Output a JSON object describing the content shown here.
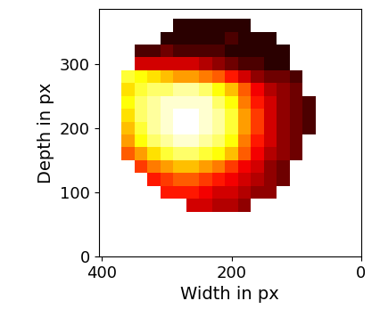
{
  "chart_data": {
    "type": "heatmap",
    "x_label": "Width in px",
    "y_label": "Depth in px",
    "xlim": [
      405,
      0
    ],
    "ylim": [
      0,
      385
    ],
    "xticks": [
      400,
      200,
      0
    ],
    "yticks": [
      0,
      100,
      200,
      300
    ],
    "color": "hot",
    "cell_range": [
      0,
      1
    ],
    "x_edges": [
      70,
      90,
      110,
      130,
      150,
      170,
      190,
      210,
      230,
      250,
      270,
      290,
      310,
      330,
      350,
      370,
      390
    ],
    "y_edges": [
      70,
      90,
      110,
      130,
      150,
      170,
      190,
      210,
      230,
      250,
      270,
      290,
      310,
      330,
      350,
      370
    ],
    "cells": [
      [
        null,
        null,
        null,
        null,
        null,
        0.2,
        0.25,
        0.25,
        0.3,
        0.3,
        null,
        null,
        null,
        null,
        null,
        null
      ],
      [
        null,
        null,
        null,
        0.2,
        0.2,
        0.25,
        0.3,
        0.3,
        0.35,
        0.4,
        0.4,
        0.4,
        null,
        null,
        null,
        null
      ],
      [
        null,
        null,
        0.15,
        0.2,
        0.25,
        0.3,
        0.35,
        0.4,
        0.45,
        0.5,
        0.5,
        0.45,
        0.4,
        null,
        null,
        null
      ],
      [
        null,
        null,
        0.15,
        0.2,
        0.3,
        0.35,
        0.45,
        0.55,
        0.6,
        0.65,
        0.65,
        0.6,
        0.55,
        0.45,
        null,
        null
      ],
      [
        null,
        0.15,
        0.2,
        0.25,
        0.35,
        0.5,
        0.65,
        0.75,
        0.8,
        0.85,
        0.85,
        0.8,
        0.7,
        0.6,
        0.5,
        null
      ],
      [
        null,
        0.15,
        0.2,
        0.3,
        0.4,
        0.55,
        0.75,
        0.85,
        0.9,
        0.95,
        0.95,
        0.9,
        0.85,
        0.75,
        0.6,
        null
      ],
      [
        0.1,
        0.15,
        0.2,
        0.3,
        0.45,
        0.6,
        0.8,
        0.9,
        0.95,
        1,
        1,
        0.95,
        0.9,
        0.8,
        0.65,
        null
      ],
      [
        0.1,
        0.15,
        0.2,
        0.3,
        0.45,
        0.6,
        0.8,
        0.9,
        0.95,
        1,
        1,
        0.95,
        0.9,
        0.85,
        0.7,
        null
      ],
      [
        0.1,
        0.15,
        0.2,
        0.3,
        0.4,
        0.55,
        0.75,
        0.85,
        0.95,
        0.95,
        0.95,
        0.95,
        0.9,
        0.85,
        0.75,
        null
      ],
      [
        null,
        0.15,
        0.2,
        0.25,
        0.35,
        0.5,
        0.65,
        0.75,
        0.85,
        0.9,
        0.9,
        0.85,
        0.85,
        0.8,
        0.7,
        null
      ],
      [
        null,
        0.1,
        0.15,
        0.15,
        0.2,
        0.3,
        0.4,
        0.5,
        0.55,
        0.6,
        0.6,
        0.65,
        0.7,
        0.75,
        0.8,
        null
      ],
      [
        null,
        null,
        0.05,
        0.05,
        0.1,
        0.1,
        0.15,
        0.2,
        0.25,
        0.3,
        0.3,
        0.3,
        0.3,
        0.3,
        null,
        null
      ],
      [
        null,
        null,
        0.05,
        0.05,
        0.05,
        0.05,
        0.05,
        0.1,
        0.1,
        0.1,
        0.1,
        0.15,
        0.1,
        0.1,
        null,
        null
      ],
      [
        null,
        null,
        null,
        0.05,
        0.05,
        0.05,
        0.1,
        0.05,
        0.05,
        0.05,
        0.05,
        0.05,
        null,
        null,
        null,
        null
      ],
      [
        null,
        null,
        null,
        null,
        null,
        0.05,
        0.05,
        0.05,
        0.05,
        0.05,
        0.05,
        null,
        null,
        null,
        null,
        null
      ]
    ]
  }
}
